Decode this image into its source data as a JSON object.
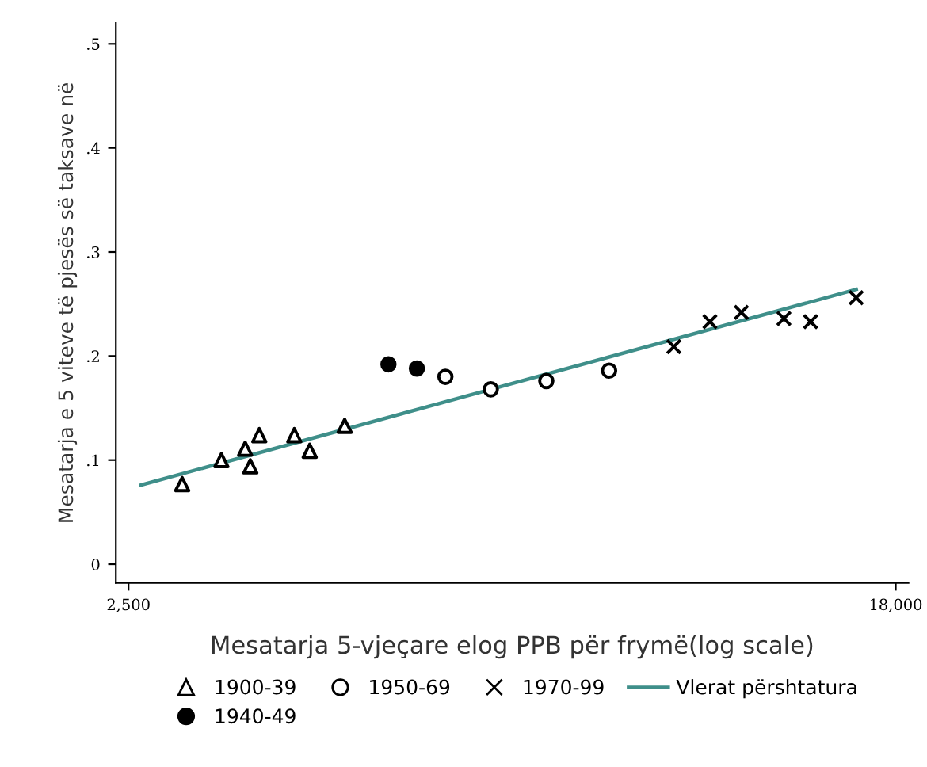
{
  "chart_data": {
    "type": "scatter",
    "xlabel": "Mesatarja 5-vjeçare elog PPB për frymë(log scale)",
    "ylabel": "Mesatarja e 5 viteve të pjesës së taksave në",
    "log": "x",
    "grid": false,
    "legend": "bottom",
    "xlim": [
      2420,
      18600
    ],
    "ylim": [
      -0.018,
      0.52
    ],
    "xticks": [
      {
        "value": 2500,
        "label": "2,500"
      },
      {
        "value": 18000,
        "label": "18,000"
      }
    ],
    "yticks": [
      {
        "value": 0,
        "label": "0"
      },
      {
        "value": 0.1,
        "label": ".1"
      },
      {
        "value": 0.2,
        "label": ".2"
      },
      {
        "value": 0.3,
        "label": ".3"
      },
      {
        "value": 0.4,
        "label": ".4"
      },
      {
        "value": 0.5,
        "label": ".5"
      }
    ],
    "series": [
      {
        "name": "1900-39",
        "marker": "triangle",
        "color": "#ffffff",
        "x": [
          2870,
          3175,
          3375,
          3420,
          3500,
          3830,
          3985,
          4360
        ],
        "values": [
          0.077,
          0.1,
          0.111,
          0.094,
          0.124,
          0.124,
          0.109,
          0.133
        ]
      },
      {
        "name": "1940-49",
        "marker": "circle",
        "color": "#000000",
        "x": [
          4880,
          5250
        ],
        "values": [
          0.192,
          0.188
        ]
      },
      {
        "name": "1950-69",
        "marker": "circle",
        "color": "#ffffff",
        "x": [
          5650,
          6350,
          7325,
          8610
        ],
        "values": [
          0.18,
          0.168,
          0.176,
          0.186
        ]
      },
      {
        "name": "1970-99",
        "marker": "cross",
        "color": "#000000",
        "x": [
          10170,
          11160,
          12100,
          13500,
          14460,
          16260
        ],
        "values": [
          0.209,
          0.233,
          0.242,
          0.236,
          0.233,
          0.256
        ]
      },
      {
        "name": "Vlerat përshtatura",
        "type": "line",
        "marker": "none",
        "color": "#3f8f8a",
        "x": [
          2580,
          16260
        ],
        "values": [
          0.076,
          0.264
        ]
      }
    ]
  }
}
